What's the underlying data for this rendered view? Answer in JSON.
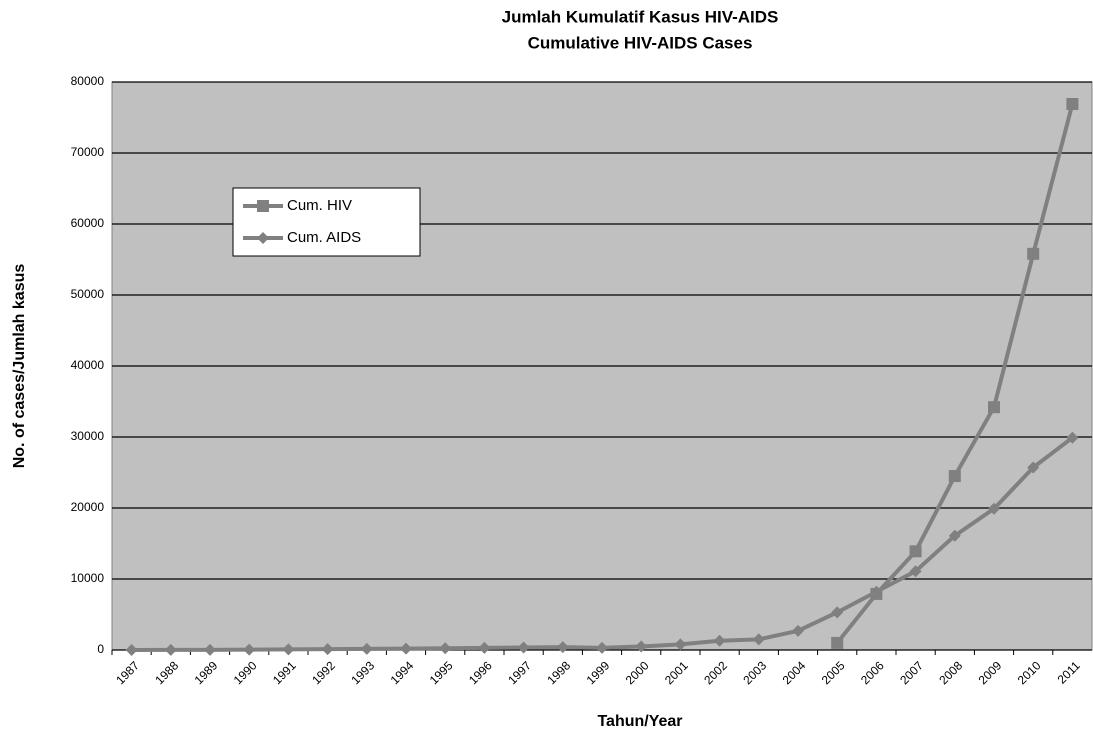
{
  "chart_data": {
    "type": "line",
    "title": "Jumlah Kumulatif  Kasus  HIV-AIDS",
    "subtitle": "Cumulative HIV-AIDS Cases",
    "x_label": "Tahun/Year",
    "y_label": "No. of cases/Jumlah kasus",
    "categories": [
      "1987",
      "1988",
      "1989",
      "1990",
      "1991",
      "1992",
      "1993",
      "1994",
      "1995",
      "1996",
      "1997",
      "1998",
      "1999",
      "2000",
      "2001",
      "2002",
      "2003",
      "2004",
      "2005",
      "2006",
      "2007",
      "2008",
      "2009",
      "2010",
      "2011"
    ],
    "series": [
      {
        "name": "Cum. HIV",
        "color": "#808080",
        "marker": "square",
        "values": [
          null,
          null,
          null,
          null,
          null,
          null,
          null,
          null,
          null,
          null,
          null,
          null,
          null,
          null,
          null,
          null,
          null,
          null,
          1000,
          7900,
          13900,
          24500,
          34200,
          55800,
          76900
        ]
      },
      {
        "name": "Cum. AIDS",
        "color": "#808080",
        "marker": "diamond",
        "values": [
          5,
          10,
          20,
          50,
          80,
          120,
          150,
          200,
          250,
          300,
          350,
          400,
          300,
          500,
          800,
          1300,
          1500,
          2700,
          5300,
          8200,
          11100,
          16100,
          19900,
          25700,
          29900
        ]
      }
    ],
    "ylim": [
      0,
      80000
    ],
    "yticks": [
      0,
      10000,
      20000,
      30000,
      40000,
      50000,
      60000,
      70000,
      80000
    ],
    "grid": true,
    "background": "#c0c0c0"
  }
}
